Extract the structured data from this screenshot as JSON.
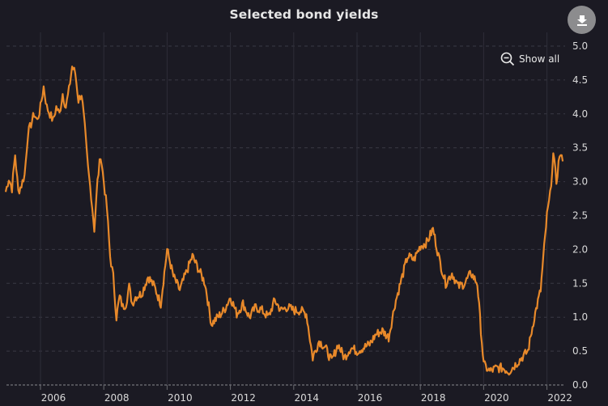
{
  "header": {
    "title": "Selected bond yields"
  },
  "toolbar": {
    "download_icon": "download-icon",
    "show_all_label": "Show all",
    "show_all_icon": "zoom-out-icon"
  },
  "colors": {
    "background": "#1b1a23",
    "line": "#e8892a",
    "grid": "#3a3944",
    "text": "#d9d9d9",
    "button": "#8c8c8e"
  },
  "chart_data": {
    "type": "line",
    "title": "Selected bond yields",
    "xlabel": "",
    "ylabel": "",
    "xlim": [
      2004.9,
      2022.6
    ],
    "ylim": [
      0.0,
      5.0
    ],
    "y_ticks": [
      "0.0",
      "0.5",
      "1.0",
      "1.5",
      "2.0",
      "2.5",
      "3.0",
      "3.5",
      "4.0",
      "4.5",
      "5.0"
    ],
    "x_ticks": [
      "2006",
      "2008",
      "2010",
      "2012",
      "2014",
      "2016",
      "2018",
      "2020",
      "2022"
    ],
    "grid": {
      "x": true,
      "y": true,
      "y_style": "dashed"
    },
    "y_axis_position": "right",
    "legend": null,
    "series": [
      {
        "name": "Bond yield",
        "x": [
          2004.9,
          2005.0,
          2005.1,
          2005.2,
          2005.3,
          2005.4,
          2005.5,
          2005.6,
          2005.7,
          2005.8,
          2005.9,
          2006.0,
          2006.1,
          2006.2,
          2006.3,
          2006.4,
          2006.5,
          2006.6,
          2006.7,
          2006.8,
          2006.9,
          2007.0,
          2007.1,
          2007.2,
          2007.3,
          2007.4,
          2007.5,
          2007.6,
          2007.7,
          2007.8,
          2007.9,
          2008.0,
          2008.1,
          2008.2,
          2008.3,
          2008.4,
          2008.5,
          2008.6,
          2008.7,
          2008.8,
          2008.9,
          2009.0,
          2009.2,
          2009.4,
          2009.6,
          2009.8,
          2010.0,
          2010.2,
          2010.4,
          2010.6,
          2010.8,
          2011.0,
          2011.2,
          2011.4,
          2011.6,
          2011.8,
          2012.0,
          2012.2,
          2012.4,
          2012.6,
          2012.8,
          2013.0,
          2013.2,
          2013.4,
          2013.6,
          2013.8,
          2014.0,
          2014.2,
          2014.4,
          2014.6,
          2014.8,
          2015.0,
          2015.2,
          2015.4,
          2015.6,
          2015.8,
          2016.0,
          2016.2,
          2016.4,
          2016.6,
          2016.8,
          2017.0,
          2017.2,
          2017.4,
          2017.6,
          2017.8,
          2018.0,
          2018.2,
          2018.4,
          2018.6,
          2018.8,
          2019.0,
          2019.2,
          2019.4,
          2019.6,
          2019.8,
          2020.0,
          2020.1,
          2020.2,
          2020.4,
          2020.6,
          2020.8,
          2021.0,
          2021.2,
          2021.4,
          2021.6,
          2021.8,
          2022.0,
          2022.1,
          2022.2,
          2022.3,
          2022.4,
          2022.5
        ],
        "values": [
          2.85,
          3.05,
          2.9,
          3.4,
          2.85,
          2.95,
          3.1,
          3.7,
          3.85,
          4.0,
          3.9,
          4.1,
          4.4,
          4.1,
          4.0,
          3.9,
          4.1,
          4.0,
          4.3,
          4.1,
          4.35,
          4.7,
          4.6,
          4.2,
          4.3,
          3.8,
          3.2,
          2.8,
          2.3,
          3.0,
          3.4,
          3.0,
          2.6,
          1.9,
          1.6,
          1.0,
          1.3,
          1.15,
          1.2,
          1.45,
          1.2,
          1.3,
          1.35,
          1.6,
          1.45,
          1.2,
          2.0,
          1.6,
          1.4,
          1.65,
          1.9,
          1.7,
          1.5,
          0.9,
          1.0,
          1.1,
          1.3,
          1.05,
          1.2,
          1.0,
          1.15,
          1.1,
          1.0,
          1.25,
          1.1,
          1.15,
          1.1,
          1.1,
          1.05,
          0.4,
          0.65,
          0.55,
          0.35,
          0.6,
          0.4,
          0.55,
          0.5,
          0.55,
          0.6,
          0.75,
          0.8,
          0.7,
          1.2,
          1.55,
          1.9,
          1.85,
          2.05,
          2.1,
          2.3,
          1.85,
          1.5,
          1.65,
          1.45,
          1.5,
          1.65,
          1.5,
          0.3,
          0.25,
          0.2,
          0.25,
          0.25,
          0.2,
          0.3,
          0.4,
          0.5,
          1.0,
          1.4,
          2.5,
          2.8,
          3.4,
          3.0,
          3.4,
          3.3
        ]
      }
    ]
  }
}
